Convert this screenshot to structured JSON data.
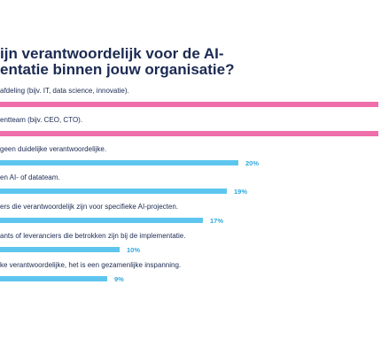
{
  "chart_data": {
    "type": "bar",
    "orientation": "horizontal",
    "title_lines": [
      "ijn verantwoordelijk voor de AI-",
      "entatie binnen jouw organisatie?"
    ],
    "categories": [
      "afdeling (bijv. IT, data science, innovatie).",
      "entteam (bijv. CEO, CTO).",
      "geen duidelijke verantwoordelijke.",
      "en AI- of datateam.",
      "ers die verantwoordelijk zijn voor specifieke AI-projecten.",
      "ants of leveranciers die betrokken zijn bij de implementatie.",
      "ke verantwoordelijke, het is een gezamenlijke inspanning."
    ],
    "values": [
      null,
      null,
      20,
      19,
      17,
      10,
      9
    ],
    "value_labels": [
      "",
      "",
      "20%",
      "19%",
      "17%",
      "10%",
      "9%"
    ],
    "colors": [
      "#ee6fa9",
      "#ee6fa9",
      "#5ec6ee",
      "#5ec6ee",
      "#5ec6ee",
      "#5ec6ee",
      "#5ec6ee"
    ],
    "value_label_colors": [
      "#ee6fa9",
      "#ee6fa9",
      "#2fa9dc",
      "#2fa9dc",
      "#2fa9dc",
      "#2fa9dc",
      "#2fa9dc"
    ]
  }
}
